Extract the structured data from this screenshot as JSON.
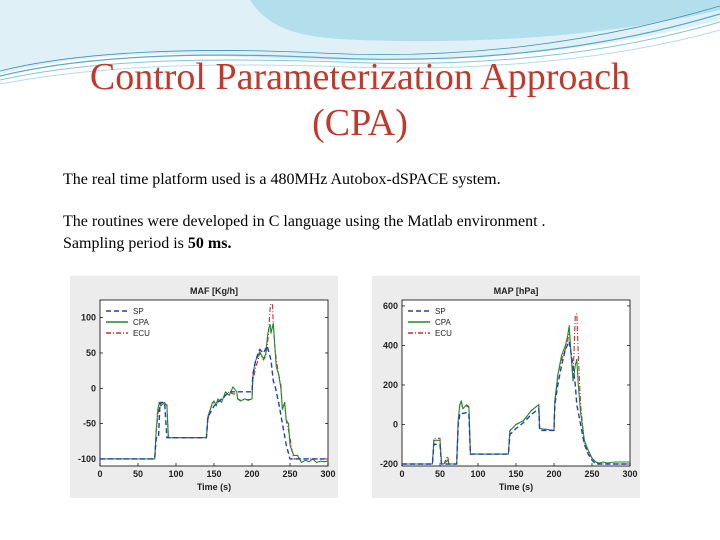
{
  "slide": {
    "title_line1": "Control Parameterization Approach",
    "title_line2": "(CPA)",
    "paragraph1": "The real time platform used is a 480MHz Autobox-d​SPACE system.",
    "paragraph2": "The routines were developed in C language using the Matlab environment .",
    "paragraph3_prefix": "Sampling period is ",
    "paragraph3_bold": "50 ms."
  },
  "colors": {
    "title": "#c0392b",
    "sp": "#1f3fbf",
    "cpa": "#1e8a2e",
    "ecu": "#d62a2a"
  },
  "chart_data": [
    {
      "type": "line",
      "title": "MAF [Kg/h]",
      "xlabel": "Time (s)",
      "ylabel": "",
      "xlim": [
        0,
        300
      ],
      "ylim": [
        -110,
        125
      ],
      "xticks": [
        0,
        50,
        100,
        150,
        200,
        250,
        300
      ],
      "yticks": [
        -100,
        -50,
        0,
        50,
        100
      ],
      "legend": [
        "SP",
        "CPA",
        "ECU"
      ],
      "grid": false,
      "series": [
        {
          "name": "SP",
          "style": "dashed",
          "x": [
            0,
            72,
            74,
            77,
            79,
            85,
            88,
            90,
            98,
            100,
            140,
            142,
            145,
            150,
            160,
            170,
            180,
            181,
            200,
            201,
            205,
            210,
            215,
            220,
            225,
            228,
            230,
            235,
            240,
            245,
            250,
            255,
            260,
            300
          ],
          "y": [
            -100,
            -100,
            -70,
            -70,
            -20,
            -20,
            -70,
            -70,
            -70,
            -70,
            -70,
            -40,
            -35,
            -25,
            -15,
            -5,
            -5,
            -5,
            -5,
            20,
            40,
            55,
            50,
            60,
            40,
            10,
            5,
            -20,
            -50,
            -80,
            -100,
            -100,
            -100,
            -100
          ]
        },
        {
          "name": "CPA",
          "style": "solid",
          "x": [
            0,
            72,
            74,
            76,
            78,
            80,
            85,
            88,
            90,
            98,
            100,
            140,
            142,
            145,
            148,
            150,
            153,
            155,
            160,
            165,
            170,
            175,
            180,
            181,
            185,
            190,
            195,
            200,
            201,
            203,
            205,
            208,
            210,
            215,
            218,
            220,
            222,
            224,
            225,
            228,
            230,
            232,
            235,
            238,
            240,
            243,
            245,
            248,
            250,
            253,
            255,
            258,
            260,
            265,
            270,
            275,
            280,
            285,
            290,
            295,
            300
          ],
          "y": [
            -100,
            -100,
            -60,
            -30,
            -20,
            -25,
            -20,
            -25,
            -70,
            -70,
            -70,
            -70,
            -40,
            -30,
            -20,
            -18,
            -25,
            -15,
            -20,
            -5,
            -10,
            2,
            -5,
            -15,
            -18,
            -15,
            -17,
            -15,
            15,
            30,
            40,
            45,
            52,
            42,
            48,
            70,
            85,
            90,
            78,
            92,
            60,
            30,
            20,
            0,
            -30,
            -20,
            -45,
            -50,
            -80,
            -90,
            -95,
            -95,
            -95,
            -105,
            -102,
            -104,
            -100,
            -105,
            -103,
            -104,
            -103
          ]
        },
        {
          "name": "ECU",
          "style": "dashdot",
          "x": [
            0,
            72,
            74,
            76,
            78,
            80,
            85,
            88,
            90,
            98,
            100,
            140,
            142,
            145,
            148,
            150,
            153,
            155,
            160,
            165,
            170,
            175,
            180,
            181,
            185,
            190,
            195,
            200,
            201,
            203,
            205,
            208,
            210,
            215,
            218,
            220,
            222,
            223,
            224,
            225,
            227,
            228,
            230,
            232,
            235,
            238,
            240,
            243,
            245,
            248,
            250,
            253,
            255,
            258,
            260,
            280,
            300
          ],
          "y": [
            -100,
            -100,
            -60,
            -40,
            -20,
            -22,
            -22,
            -22,
            -70,
            -70,
            -70,
            -70,
            -45,
            -30,
            -22,
            -20,
            -20,
            -18,
            -18,
            -10,
            -5,
            -8,
            -8,
            -15,
            -17,
            -16,
            -16,
            -15,
            10,
            20,
            30,
            40,
            50,
            40,
            45,
            60,
            80,
            100,
            115,
            120,
            118,
            90,
            60,
            40,
            20,
            5,
            -30,
            -20,
            -45,
            -60,
            -70,
            -90,
            -100,
            -100,
            -100,
            -100,
            -100
          ]
        }
      ]
    },
    {
      "type": "line",
      "title": "MAP [hPa]",
      "xlabel": "Time (s)",
      "ylabel": "",
      "xlim": [
        0,
        300
      ],
      "ylim": [
        -210,
        630
      ],
      "xticks": [
        0,
        50,
        100,
        150,
        200,
        250,
        300
      ],
      "yticks": [
        -200,
        0,
        200,
        400,
        600
      ],
      "legend": [
        "SP",
        "CPA",
        "ECU"
      ],
      "grid": false,
      "series": [
        {
          "name": "SP",
          "style": "dashed",
          "x": [
            0,
            40,
            42,
            50,
            52,
            55,
            60,
            62,
            68,
            72,
            74,
            76,
            78,
            80,
            85,
            88,
            90,
            98,
            100,
            140,
            142,
            145,
            150,
            160,
            170,
            180,
            181,
            200,
            201,
            205,
            210,
            215,
            220,
            225,
            228,
            230,
            235,
            240,
            245,
            250,
            255,
            260,
            300
          ],
          "y": [
            -200,
            -200,
            -100,
            -100,
            -200,
            -200,
            -200,
            -200,
            -200,
            -200,
            0,
            50,
            60,
            55,
            60,
            55,
            -150,
            -150,
            -150,
            -150,
            -50,
            -40,
            -20,
            10,
            50,
            80,
            -30,
            -30,
            100,
            200,
            300,
            380,
            420,
            300,
            200,
            100,
            0,
            -100,
            -150,
            -180,
            -200,
            -200,
            -200
          ]
        },
        {
          "name": "CPA",
          "style": "solid",
          "x": [
            0,
            40,
            42,
            50,
            52,
            55,
            60,
            62,
            68,
            72,
            74,
            76,
            78,
            80,
            85,
            88,
            90,
            98,
            100,
            140,
            142,
            145,
            150,
            160,
            170,
            180,
            181,
            200,
            201,
            205,
            210,
            215,
            218,
            220,
            222,
            225,
            228,
            230,
            232,
            235,
            240,
            245,
            250,
            255,
            260,
            265,
            270,
            280,
            300
          ],
          "y": [
            -200,
            -200,
            -80,
            -80,
            -200,
            -200,
            -180,
            -200,
            -200,
            -200,
            20,
            100,
            120,
            80,
            100,
            90,
            -150,
            -150,
            -150,
            -150,
            -30,
            -20,
            0,
            20,
            70,
            100,
            -20,
            -30,
            120,
            250,
            350,
            400,
            450,
            500,
            380,
            220,
            300,
            330,
            200,
            60,
            -80,
            -130,
            -170,
            -190,
            -195,
            -190,
            -195,
            -190,
            -190
          ]
        },
        {
          "name": "ECU",
          "style": "dashdot",
          "x": [
            0,
            40,
            42,
            50,
            52,
            55,
            60,
            62,
            68,
            72,
            74,
            76,
            78,
            80,
            85,
            88,
            90,
            98,
            100,
            140,
            142,
            145,
            150,
            160,
            170,
            180,
            181,
            200,
            201,
            205,
            210,
            215,
            218,
            220,
            222,
            225,
            228,
            230,
            232,
            235,
            240,
            245,
            250,
            255,
            260,
            270,
            280,
            300
          ],
          "y": [
            -200,
            -200,
            -70,
            -70,
            -200,
            -200,
            -160,
            -200,
            -200,
            -200,
            20,
            100,
            120,
            80,
            95,
            85,
            -150,
            -150,
            -150,
            -150,
            -30,
            -20,
            0,
            20,
            70,
            100,
            -20,
            -30,
            100,
            250,
            330,
            380,
            420,
            480,
            380,
            230,
            550,
            560,
            350,
            100,
            -100,
            -140,
            -170,
            -190,
            -200,
            -200,
            -200,
            -200
          ]
        }
      ]
    }
  ]
}
